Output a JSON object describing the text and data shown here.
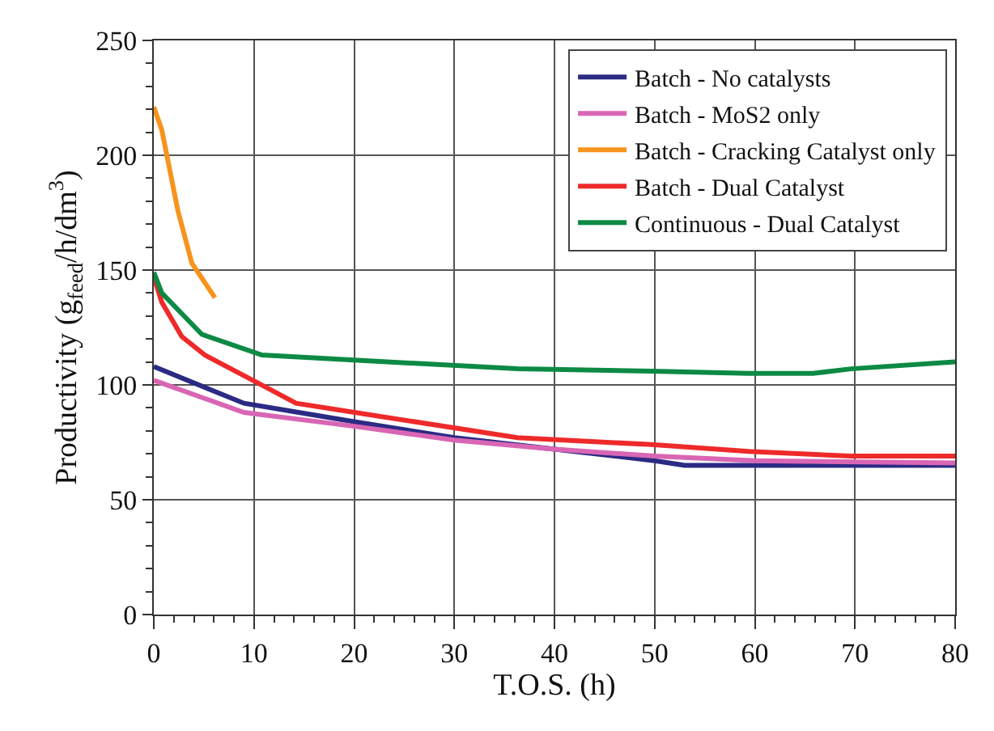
{
  "chart_data": {
    "type": "line",
    "xlabel": "T.O.S. (h)",
    "ylabel": "Productivity (g$_{feed}$/h/dm$^{3}$)",
    "xlim": [
      0,
      80
    ],
    "xticks": [
      0,
      10,
      20,
      30,
      40,
      50,
      60,
      70,
      80
    ],
    "ylim": [
      0,
      250
    ],
    "yticks": [
      0,
      50,
      100,
      150,
      200,
      250
    ],
    "grid": true,
    "legend": "top right",
    "marker": "none",
    "line_style": "solid",
    "series": [
      {
        "name": "Batch - No catalysts",
        "color": "#2b2a84",
        "x": [
          0,
          9,
          20,
          30,
          40,
          50,
          53,
          80
        ],
        "values": [
          108,
          92,
          84,
          77,
          72,
          67,
          65,
          65
        ]
      },
      {
        "name": "Batch - MoS2 only",
        "color": "#d966b4",
        "x": [
          0,
          9,
          20,
          30,
          40,
          50,
          60,
          80
        ],
        "values": [
          102,
          88,
          82,
          76,
          72,
          69,
          67,
          66
        ]
      },
      {
        "name": "Batch - Cracking Catalyst only",
        "color": "#f7941d",
        "x": [
          0,
          0.8,
          2.4,
          3.8,
          6.1
        ],
        "values": [
          221,
          211,
          176,
          153,
          138
        ]
      },
      {
        "name": "Batch - Dual Catalyst",
        "color": "#ee2a2a",
        "x": [
          0,
          0.8,
          2.8,
          5.1,
          9.9,
          14.2,
          36.3,
          49.7,
          59.4,
          69.6,
          80
        ],
        "values": [
          147,
          136,
          121,
          113,
          102,
          92,
          77,
          74,
          71,
          69,
          69
        ]
      },
      {
        "name": "Continuous - Dual Catalyst",
        "color": "#0c8a44",
        "x": [
          0,
          0.8,
          4.8,
          10.8,
          36.3,
          49.7,
          59.4,
          65.8,
          69.6,
          80
        ],
        "values": [
          149,
          140,
          122,
          113,
          107,
          106,
          105,
          105,
          107,
          110
        ]
      }
    ]
  }
}
